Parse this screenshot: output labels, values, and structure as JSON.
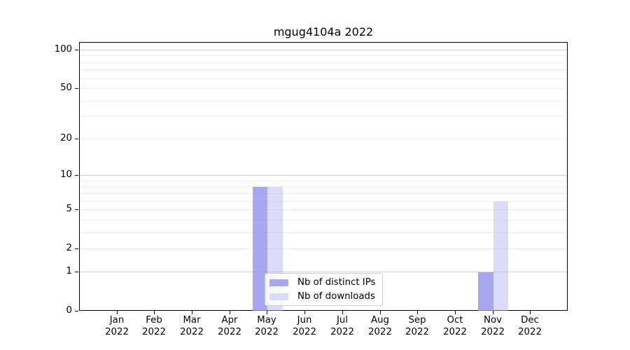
{
  "chart_data": {
    "type": "bar",
    "title": "mgug4104a 2022",
    "x_tick_labels": [
      [
        "Jan",
        "2022"
      ],
      [
        "Feb",
        "2022"
      ],
      [
        "Mar",
        "2022"
      ],
      [
        "Apr",
        "2022"
      ],
      [
        "May",
        "2022"
      ],
      [
        "Jun",
        "2022"
      ],
      [
        "Jul",
        "2022"
      ],
      [
        "Aug",
        "2022"
      ],
      [
        "Sep",
        "2022"
      ],
      [
        "Oct",
        "2022"
      ],
      [
        "Nov",
        "2022"
      ],
      [
        "Dec",
        "2022"
      ]
    ],
    "series": [
      {
        "name": "Nb of distinct IPs",
        "color": "#a8a8f0",
        "fill": "rgba(146,146,236,0.8)",
        "values": [
          0,
          0,
          0,
          0,
          8,
          0,
          0,
          0,
          0,
          0,
          1,
          0
        ]
      },
      {
        "name": "Nb of downloads",
        "color": "#dcdcf8",
        "fill": "rgba(185,185,241,0.5)",
        "values": [
          0,
          0,
          0,
          0,
          8,
          0,
          0,
          0,
          0,
          0,
          6,
          0
        ]
      }
    ],
    "y_scale": "log1p",
    "ylim": [
      0,
      115
    ],
    "y_tick_values": [
      0,
      1,
      2,
      5,
      10,
      20,
      50,
      100
    ],
    "y_gridlines_major": [
      1,
      10,
      100
    ],
    "y_gridlines_minor": [
      2,
      3,
      4,
      5,
      6,
      7,
      8,
      9,
      20,
      30,
      40,
      50,
      60,
      70,
      80,
      90
    ],
    "grid": true,
    "legend_position": "lower center"
  },
  "colors": {
    "background": "#ffffff",
    "spine": "#000000",
    "grid_major": "#d0d0d0",
    "grid_minor": "#ececec",
    "text": "#000000",
    "legend_border": "#cccccc"
  }
}
